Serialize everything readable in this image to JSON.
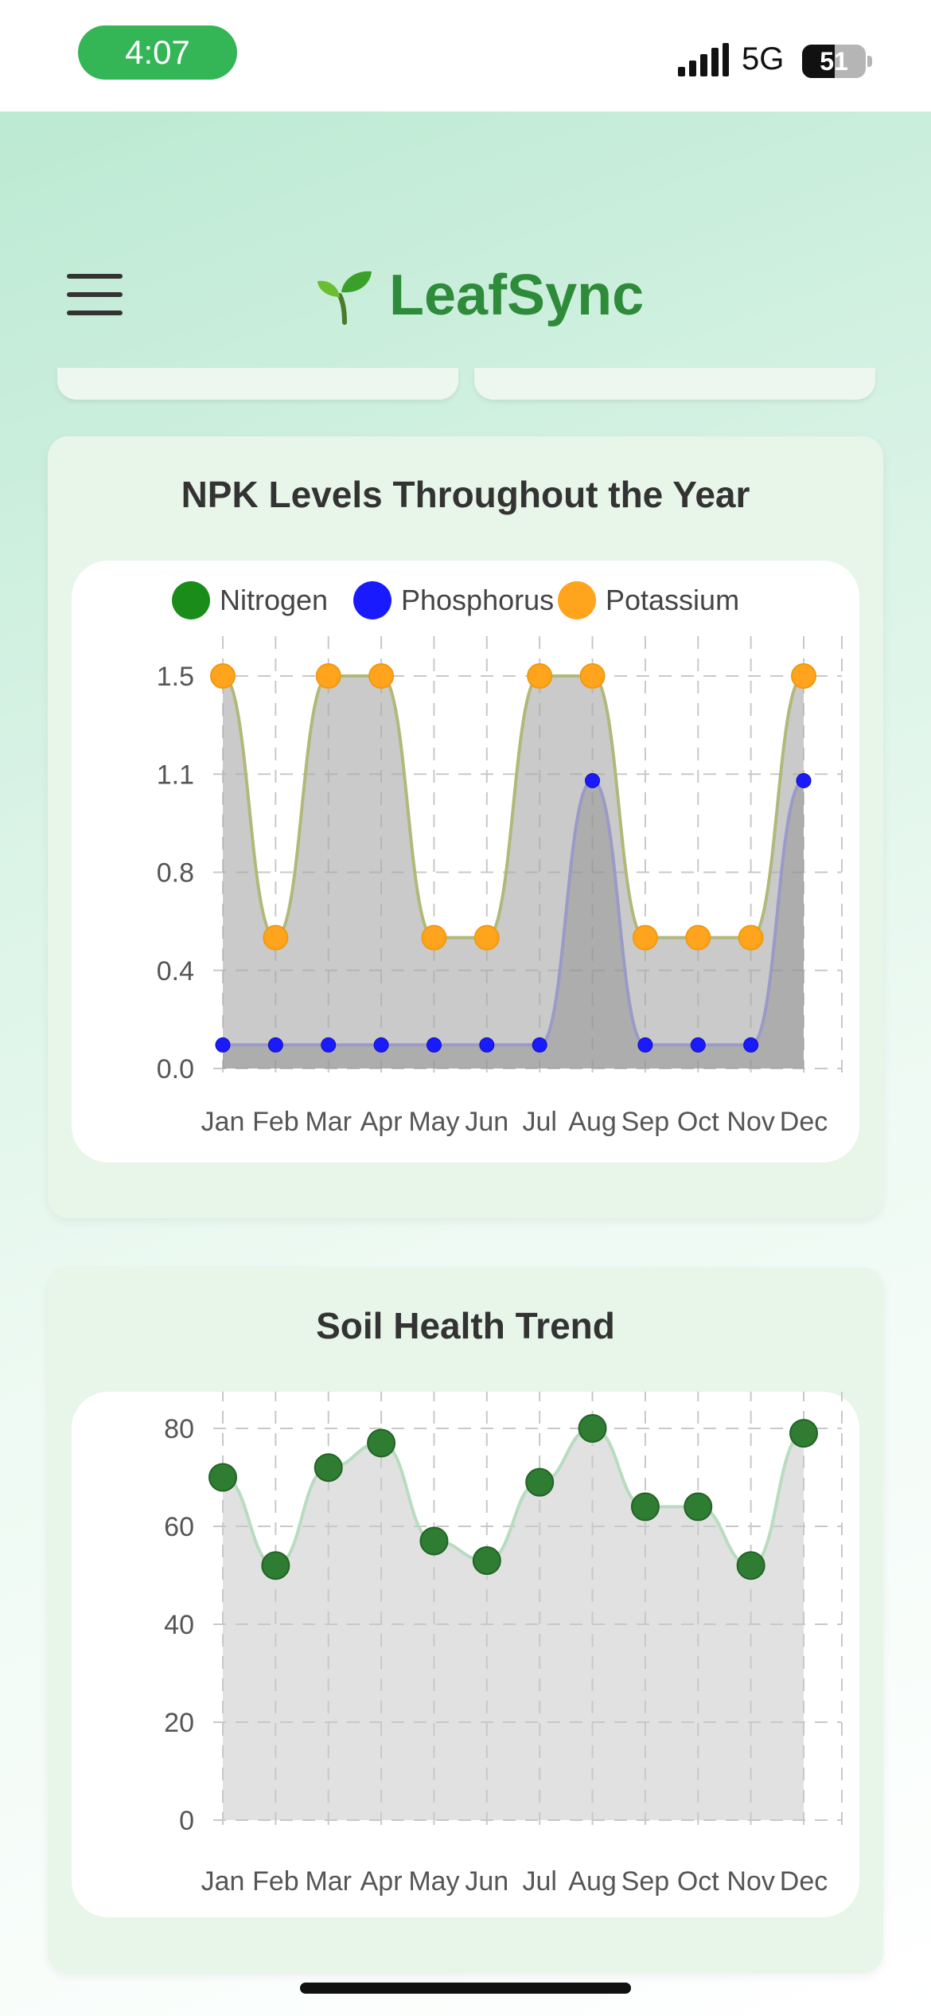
{
  "status_bar": {
    "time": "4:07",
    "network": "5G",
    "battery": "51",
    "battery_level": 0.51
  },
  "header": {
    "menu_icon": "hamburger-menu-icon",
    "brand_icon": "🌱",
    "brand_name": "LeafSync"
  },
  "colors": {
    "brand": "#2e8b3a",
    "nitrogen": "#1a8c1a",
    "phosphorus": "#1a1aff",
    "potassium": "#ffa41c",
    "soil": "#2e7d32"
  },
  "npk_panel": {
    "title": "NPK Levels Throughout the Year",
    "chart_data": {
      "type": "area",
      "categories": [
        "Jan",
        "Feb",
        "Mar",
        "Apr",
        "May",
        "Jun",
        "Jul",
        "Aug",
        "Sep",
        "Oct",
        "Nov",
        "Dec"
      ],
      "series": [
        {
          "name": "Nitrogen",
          "values": [
            0.09,
            0.09,
            0.09,
            0.09,
            0.09,
            0.09,
            0.09,
            1.1,
            0.09,
            0.09,
            0.09,
            1.1
          ]
        },
        {
          "name": "Phosphorus",
          "values": [
            0.09,
            0.09,
            0.09,
            0.09,
            0.09,
            0.09,
            0.09,
            1.1,
            0.09,
            0.09,
            0.09,
            1.1
          ]
        },
        {
          "name": "Potassium",
          "values": [
            1.5,
            0.5,
            1.5,
            1.5,
            0.5,
            0.5,
            1.5,
            1.5,
            0.5,
            0.5,
            0.5,
            1.5
          ]
        }
      ],
      "y_tick_labels": [
        "0.0",
        "0.4",
        "0.8",
        "1.1",
        "1.5"
      ],
      "ylim": [
        0,
        1.5
      ],
      "legend_position": "top",
      "grid": true
    }
  },
  "soil_panel": {
    "title": "Soil Health Trend",
    "chart_data": {
      "type": "area",
      "categories": [
        "Jan",
        "Feb",
        "Mar",
        "Apr",
        "May",
        "Jun",
        "Jul",
        "Aug",
        "Sep",
        "Oct",
        "Nov",
        "Dec"
      ],
      "series": [
        {
          "values": [
            70,
            52,
            72,
            77,
            57,
            53,
            69,
            80,
            64,
            64,
            52,
            79
          ]
        }
      ],
      "y_tick_labels": [
        "0",
        "20",
        "40",
        "60",
        "80"
      ],
      "ylim": [
        0,
        80
      ],
      "grid": true
    }
  }
}
